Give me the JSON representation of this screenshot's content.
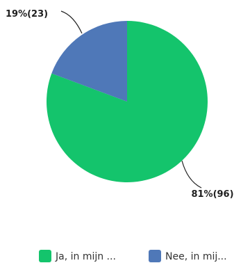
{
  "chart_data": {
    "type": "pie",
    "slices": [
      {
        "label": "Ja, in mijn ...",
        "value": 96,
        "data_label": "81%(96)",
        "color": "#14c46c"
      },
      {
        "label": "Nee, in mij...",
        "value": 23,
        "data_label": "19%(23)",
        "color": "#4f78b8"
      }
    ],
    "legend_position": "bottom"
  }
}
